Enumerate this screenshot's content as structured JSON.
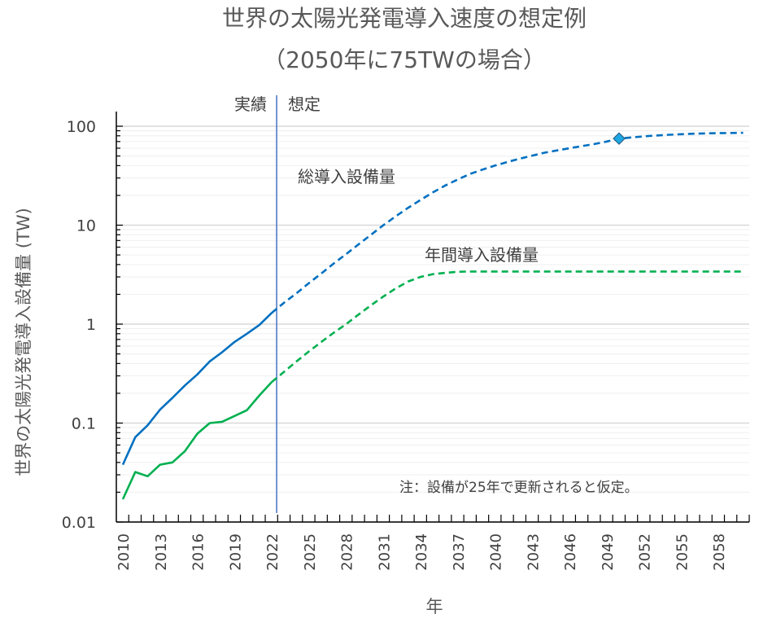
{
  "chart_data": {
    "type": "line",
    "title": "世界の太陽光発電導入速度の想定例",
    "subtitle": "（2050年に75TWの場合）",
    "xlabel": "年",
    "ylabel": "世界の太陽光発電導入設備量 (TW)",
    "yscale": "log",
    "ylim": [
      0.01,
      100
    ],
    "y_ticks": [
      {
        "value": 100,
        "label": "100"
      },
      {
        "value": 10,
        "label": "10"
      },
      {
        "value": 1,
        "label": "1"
      },
      {
        "value": 0.1,
        "label": "0.1"
      },
      {
        "value": 0.01,
        "label": "0.01"
      }
    ],
    "x_range": [
      2010,
      2060
    ],
    "x_tick_labels": [
      "2010",
      "2013",
      "2016",
      "2019",
      "2022",
      "2025",
      "2028",
      "2031",
      "2034",
      "2037",
      "2040",
      "2043",
      "2046",
      "2049",
      "2052",
      "2055",
      "2058"
    ],
    "grid": "horizontal major and minor",
    "divider": {
      "year": 2022.4,
      "left_label": "実績",
      "right_label": "想定",
      "color": "#4472C4"
    },
    "series": [
      {
        "name": "総導入設備量",
        "color": "#0070C0",
        "actual_until": 2022,
        "x": [
          2010,
          2011,
          2012,
          2013,
          2014,
          2015,
          2016,
          2017,
          2018,
          2019,
          2020,
          2021,
          2022,
          2023,
          2024,
          2025,
          2026,
          2027,
          2028,
          2029,
          2030,
          2031,
          2032,
          2033,
          2034,
          2035,
          2036,
          2037,
          2038,
          2039,
          2040,
          2041,
          2042,
          2043,
          2044,
          2045,
          2046,
          2047,
          2048,
          2049,
          2050,
          2051,
          2052,
          2053,
          2054,
          2055,
          2056,
          2057,
          2058,
          2059,
          2060
        ],
        "values": [
          0.038,
          0.072,
          0.095,
          0.137,
          0.18,
          0.24,
          0.31,
          0.42,
          0.52,
          0.66,
          0.8,
          0.98,
          1.3,
          1.65,
          2.05,
          2.6,
          3.25,
          4.1,
          5.1,
          6.4,
          8.0,
          10.0,
          12.3,
          15.0,
          18.0,
          21.5,
          25.2,
          29.0,
          33.0,
          36.5,
          40.0,
          43.5,
          47.0,
          50.5,
          54.0,
          57.0,
          60.0,
          63.0,
          66.0,
          70.0,
          75.0,
          77.0,
          79.0,
          80.5,
          82.0,
          83.0,
          84.0,
          84.7,
          85.2,
          85.5,
          85.7
        ]
      },
      {
        "name": "年間導入設備量",
        "color": "#00B050",
        "actual_until": 2022,
        "x": [
          2010,
          2011,
          2012,
          2013,
          2014,
          2015,
          2016,
          2017,
          2018,
          2019,
          2020,
          2021,
          2022,
          2023,
          2024,
          2025,
          2026,
          2027,
          2028,
          2029,
          2030,
          2031,
          2032,
          2033,
          2034,
          2035,
          2036,
          2037,
          2038,
          2039,
          2040,
          2041,
          2042,
          2043,
          2044,
          2045,
          2046,
          2047,
          2048,
          2049,
          2050,
          2051,
          2052,
          2053,
          2054,
          2055,
          2056,
          2057,
          2058,
          2059,
          2060
        ],
        "values": [
          0.017,
          0.032,
          0.029,
          0.038,
          0.04,
          0.052,
          0.078,
          0.1,
          0.103,
          0.118,
          0.135,
          0.19,
          0.26,
          0.33,
          0.42,
          0.53,
          0.66,
          0.82,
          1.0,
          1.25,
          1.55,
          1.9,
          2.3,
          2.7,
          3.0,
          3.2,
          3.3,
          3.38,
          3.4,
          3.4,
          3.4,
          3.4,
          3.4,
          3.4,
          3.4,
          3.4,
          3.4,
          3.4,
          3.4,
          3.4,
          3.4,
          3.4,
          3.4,
          3.4,
          3.4,
          3.4,
          3.4,
          3.4,
          3.4,
          3.4,
          3.4
        ]
      }
    ],
    "marker": {
      "year": 2050,
      "value": 75,
      "shape": "diamond",
      "color": "#1EA7E1",
      "series": "総導入設備量"
    },
    "annotations": [
      {
        "text": "総導入設備量",
        "series": "総導入設備量"
      },
      {
        "text": "年間導入設備量",
        "series": "年間導入設備量"
      },
      {
        "text": "注：設備が25年で更新されると仮定。",
        "role": "note"
      }
    ]
  }
}
